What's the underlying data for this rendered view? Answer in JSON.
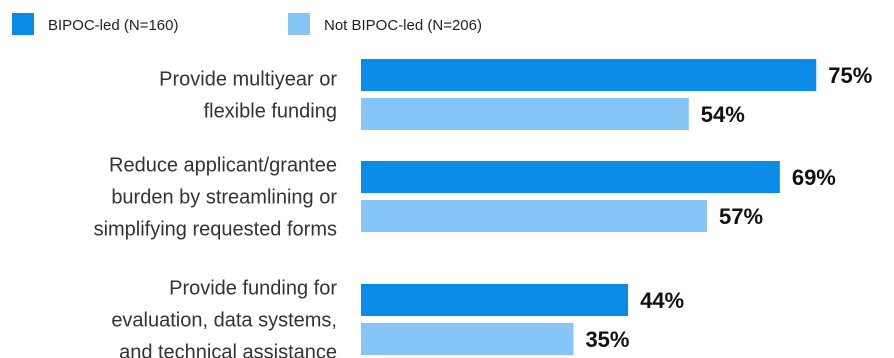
{
  "chart_data": {
    "type": "bar",
    "orientation": "horizontal",
    "title": "",
    "xlabel": "",
    "ylabel": "",
    "xlim": [
      0,
      100
    ],
    "grid": false,
    "legend_position": "top-left",
    "value_suffix": "%",
    "categories": [
      [
        "Provide multiyear or",
        "flexible funding"
      ],
      [
        "Reduce applicant/grantee",
        "burden by streamlining or",
        "simplifying requested forms"
      ],
      [
        "Provide funding for",
        "evaluation, data systems,",
        "and technical assistance"
      ]
    ],
    "series": [
      {
        "name": "BIPOC-led (N=160)",
        "color": "#0a8be8",
        "values": [
          75,
          69,
          44
        ]
      },
      {
        "name": "Not BIPOC-led (N=206)",
        "color": "#85c6f6",
        "values": [
          54,
          57,
          35
        ]
      }
    ]
  }
}
